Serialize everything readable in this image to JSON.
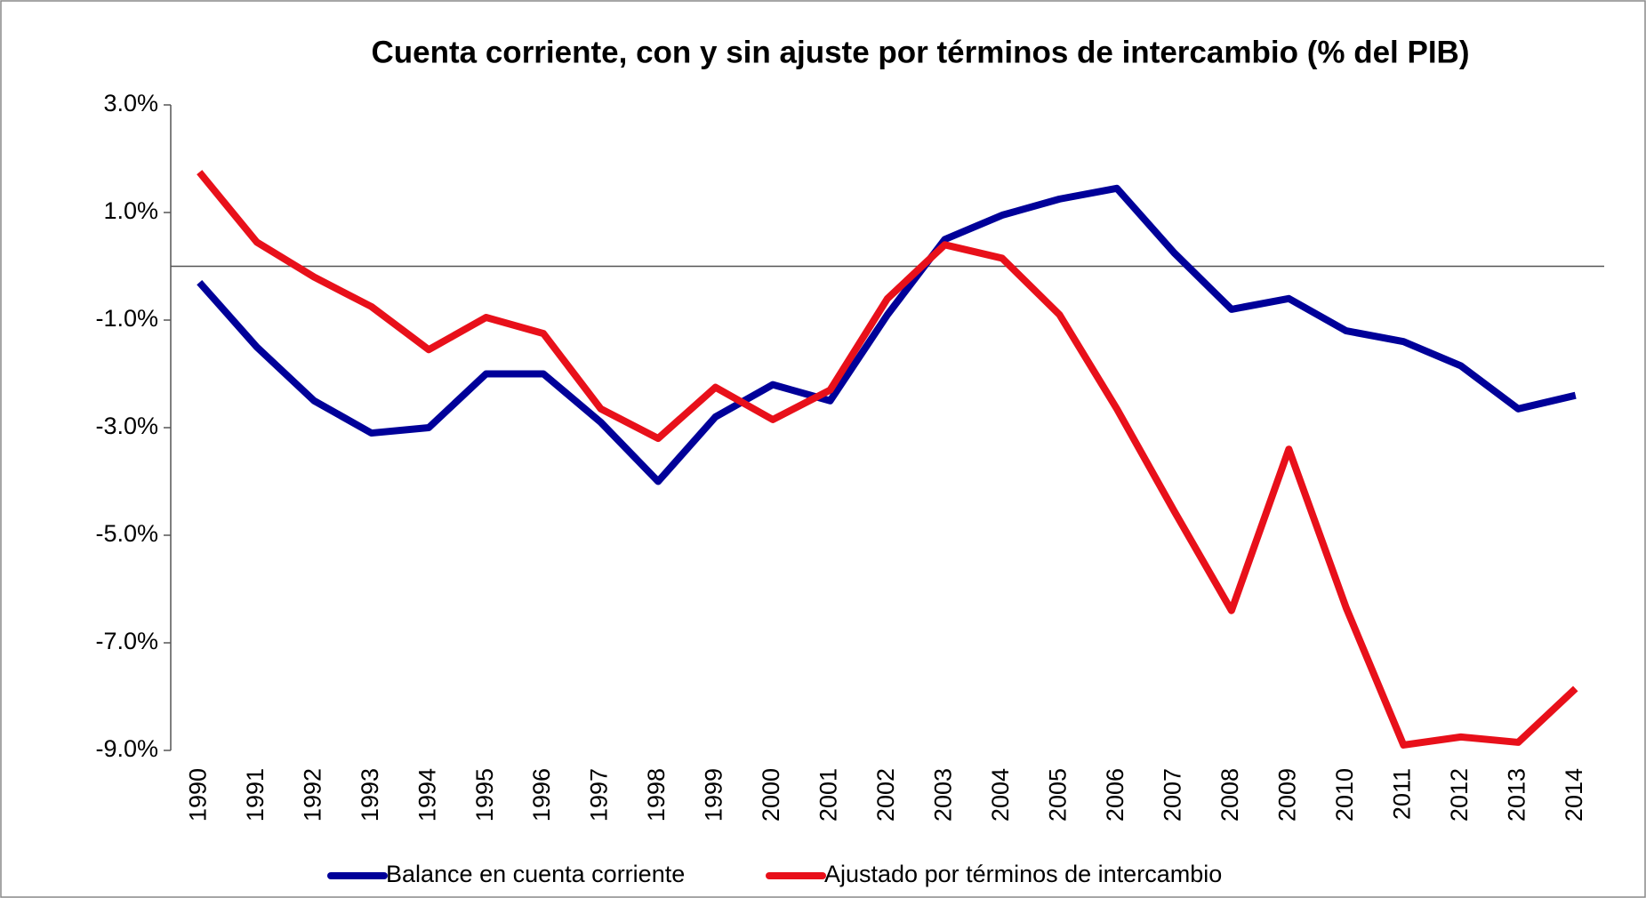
{
  "chart_data": {
    "type": "line",
    "title": "Cuenta corriente, con y sin ajuste por términos de intercambio (% del PIB)",
    "categories": [
      "1990",
      "1991",
      "1992",
      "1993",
      "1994",
      "1995",
      "1996",
      "1997",
      "1998",
      "1999",
      "2000",
      "2001",
      "2002",
      "2003",
      "2004",
      "2005",
      "2006",
      "2007",
      "2008",
      "2009",
      "2010",
      "2011",
      "2012",
      "2013",
      "2014"
    ],
    "series": [
      {
        "name": "Balance en cuenta corriente",
        "color": "#000099",
        "values": [
          -0.3,
          -1.5,
          -2.5,
          -3.1,
          -3.0,
          -2.0,
          -2.0,
          -2.9,
          -4.0,
          -2.8,
          -2.2,
          -2.5,
          -0.9,
          0.5,
          0.95,
          1.25,
          1.45,
          0.25,
          -0.8,
          -0.6,
          -1.2,
          -1.4,
          -1.85,
          -2.65,
          -2.4
        ]
      },
      {
        "name": "Ajustado por términos de intercambio",
        "color": "#e8101a",
        "values": [
          1.75,
          0.45,
          -0.2,
          -0.75,
          -1.55,
          -0.95,
          -1.25,
          -2.65,
          -3.2,
          -2.25,
          -2.85,
          -2.3,
          -0.6,
          0.4,
          0.15,
          -0.9,
          -2.65,
          -4.55,
          -6.4,
          -3.4,
          -6.35,
          -8.9,
          -8.75,
          -8.85,
          -7.85
        ]
      }
    ],
    "ylim": [
      -9,
      3
    ],
    "yticks": [
      {
        "value": 3,
        "label": "3.0%"
      },
      {
        "value": 1,
        "label": "1.0%"
      },
      {
        "value": -1,
        "label": "-1.0%"
      },
      {
        "value": -3,
        "label": "-3.0%"
      },
      {
        "value": -5,
        "label": "-5.0%"
      },
      {
        "value": -7,
        "label": "-7.0%"
      },
      {
        "value": -9,
        "label": "-9.0%"
      }
    ],
    "legend": "bottom"
  }
}
